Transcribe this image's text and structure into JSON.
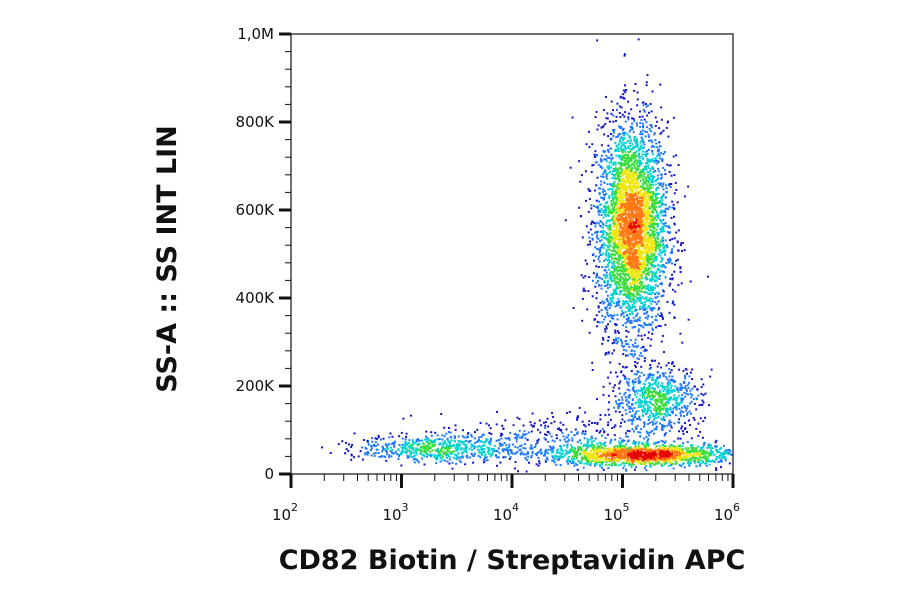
{
  "chart_data": {
    "type": "scatter",
    "subtype": "flow-cytometry density dot plot",
    "xlabel": "CD82 Biotin / Streptavidin APC",
    "ylabel": "SS-A :: SS INT LIN",
    "x_scale": "log",
    "xlim": [
      100,
      1000000
    ],
    "ylim": [
      0,
      1000000
    ],
    "x_ticks": [
      {
        "value": 100,
        "base": "10",
        "exp": "2"
      },
      {
        "value": 1000,
        "base": "10",
        "exp": "3"
      },
      {
        "value": 10000,
        "base": "10",
        "exp": "4"
      },
      {
        "value": 100000,
        "base": "10",
        "exp": "5"
      },
      {
        "value": 1000000,
        "base": "10",
        "exp": "6"
      }
    ],
    "y_ticks": [
      {
        "value": 0,
        "label": "0"
      },
      {
        "value": 200000,
        "label": "200K"
      },
      {
        "value": 400000,
        "label": "400K"
      },
      {
        "value": 600000,
        "label": "600K"
      },
      {
        "value": 800000,
        "label": "800K"
      },
      {
        "value": 1000000,
        "label": "1,0M"
      }
    ],
    "colormap": [
      "#1414c8",
      "#1e78ff",
      "#00d2d2",
      "#3cdc3c",
      "#f0e614",
      "#ff7814",
      "#e60000"
    ],
    "populations": [
      {
        "x_center": 120000,
        "y_center": 560000,
        "x_spread_log": 0.16,
        "y_spread": 120000,
        "weight": 0.55
      },
      {
        "x_center": 200000,
        "y_center": 170000,
        "x_spread_log": 0.2,
        "y_spread": 40000,
        "weight": 0.1
      },
      {
        "x_center": 150000,
        "y_center": 45000,
        "x_spread_log": 0.45,
        "y_spread": 12000,
        "weight": 0.22
      },
      {
        "x_center": 2000,
        "y_center": 60000,
        "x_spread_log": 0.35,
        "y_spread": 15000,
        "weight": 0.08
      },
      {
        "x_center": 20000,
        "y_center": 80000,
        "x_spread_log": 0.5,
        "y_spread": 30000,
        "weight": 0.05
      }
    ],
    "grid": false,
    "legend": "none"
  }
}
